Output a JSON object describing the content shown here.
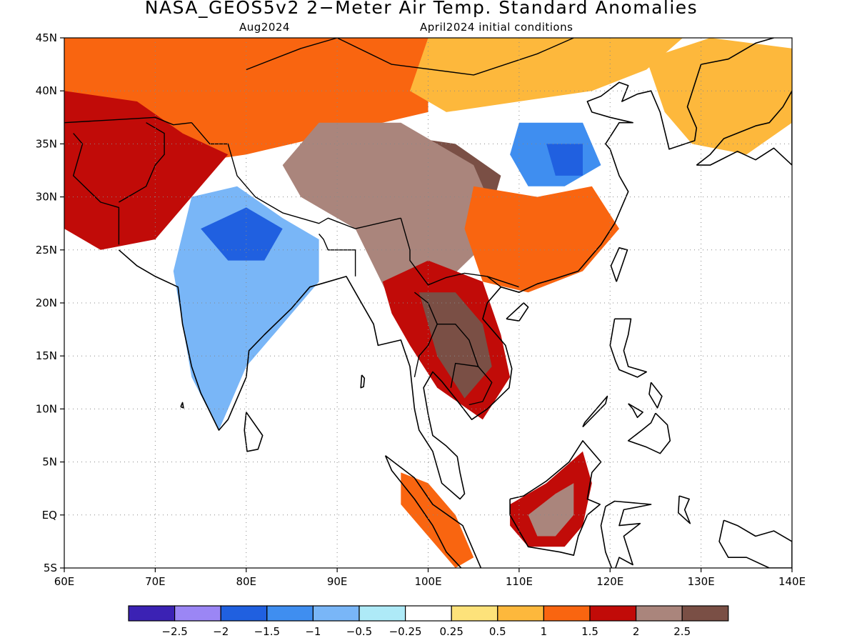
{
  "title": "NASA_GEOS5v2 2−Meter Air Temp. Standard Anomalies",
  "subtitle_left": "Aug2024",
  "subtitle_right": "April2024 initial conditions",
  "map": {
    "lat_labels": [
      "45N",
      "40N",
      "35N",
      "30N",
      "25N",
      "20N",
      "15N",
      "10N",
      "5N",
      "EQ",
      "5S"
    ],
    "lon_labels": [
      "60E",
      "70E",
      "80E",
      "90E",
      "100E",
      "110E",
      "120E",
      "130E",
      "140E"
    ],
    "extent": {
      "lon_min": 60,
      "lon_max": 140,
      "lat_min": -5,
      "lat_max": 45
    }
  },
  "colorbar": {
    "colors": [
      "#3b22b4",
      "#9b86f5",
      "#2060e0",
      "#3f8ef0",
      "#79b6f7",
      "#aeeaf7",
      "#ffffff",
      "#fde27a",
      "#fdb83c",
      "#f96510",
      "#c10b08",
      "#aa857c",
      "#7a4f45"
    ],
    "labels": [
      "−2.5",
      "−2",
      "−1.5",
      "−1",
      "−0.5",
      "−0.25",
      "0.25",
      "0.5",
      "1",
      "1.5",
      "2",
      "2.5"
    ]
  },
  "anomaly_regions": [
    {
      "name": "central-asia-warm",
      "color": "#f96510",
      "points": [
        [
          60,
          45
        ],
        [
          100,
          45
        ],
        [
          100,
          38
        ],
        [
          90,
          36
        ],
        [
          80,
          34
        ],
        [
          72,
          33
        ],
        [
          66,
          30
        ],
        [
          60,
          27
        ]
      ]
    },
    {
      "name": "west-hot",
      "color": "#c10b08",
      "points": [
        [
          60,
          40
        ],
        [
          68,
          39
        ],
        [
          73,
          36
        ],
        [
          78,
          34
        ],
        [
          74,
          30
        ],
        [
          70,
          26
        ],
        [
          64,
          25
        ],
        [
          60,
          27
        ]
      ]
    },
    {
      "name": "mongolia-band",
      "color": "#fdb83c",
      "points": [
        [
          100,
          45
        ],
        [
          128,
          45
        ],
        [
          124,
          42
        ],
        [
          118,
          40
        ],
        [
          110,
          39
        ],
        [
          102,
          38
        ],
        [
          98,
          40
        ]
      ]
    },
    {
      "name": "tibet-very-hot",
      "color": "#7a4f45",
      "points": [
        [
          86,
          35
        ],
        [
          95,
          36
        ],
        [
          103,
          35
        ],
        [
          108,
          32
        ],
        [
          106,
          26
        ],
        [
          100,
          23
        ],
        [
          94,
          27
        ],
        [
          88,
          29
        ]
      ]
    },
    {
      "name": "tibet-rim",
      "color": "#aa857c",
      "points": [
        [
          84,
          33
        ],
        [
          88,
          37
        ],
        [
          97,
          37
        ],
        [
          105,
          33
        ],
        [
          108,
          27
        ],
        [
          102,
          22
        ],
        [
          96,
          20
        ],
        [
          92,
          27
        ],
        [
          86,
          30
        ]
      ]
    },
    {
      "name": "south-china-warm",
      "color": "#f96510",
      "points": [
        [
          105,
          31
        ],
        [
          112,
          30
        ],
        [
          118,
          31
        ],
        [
          121,
          27
        ],
        [
          117,
          23
        ],
        [
          111,
          21
        ],
        [
          106,
          22
        ],
        [
          104,
          27
        ]
      ]
    },
    {
      "name": "north-china-cold",
      "color": "#3f8ef0",
      "points": [
        [
          110,
          37
        ],
        [
          117,
          37
        ],
        [
          119,
          33
        ],
        [
          115,
          31
        ],
        [
          111,
          31
        ],
        [
          109,
          34
        ]
      ]
    },
    {
      "name": "north-china-cold-core",
      "color": "#2060e0",
      "points": [
        [
          113,
          35
        ],
        [
          117,
          35
        ],
        [
          117,
          32
        ],
        [
          114,
          32
        ]
      ]
    },
    {
      "name": "india-cool",
      "color": "#79b6f7",
      "points": [
        [
          72,
          23
        ],
        [
          74,
          30
        ],
        [
          79,
          31
        ],
        [
          84,
          28
        ],
        [
          88,
          26
        ],
        [
          88,
          22
        ],
        [
          84,
          18
        ],
        [
          80,
          14
        ],
        [
          78,
          10
        ],
        [
          77,
          8
        ],
        [
          74,
          13
        ],
        [
          73,
          18
        ]
      ]
    },
    {
      "name": "india-cold-core",
      "color": "#2060e0",
      "points": [
        [
          75,
          27
        ],
        [
          80,
          29
        ],
        [
          84,
          27
        ],
        [
          82,
          24
        ],
        [
          78,
          24
        ]
      ]
    },
    {
      "name": "indochina-hot",
      "color": "#c10b08",
      "points": [
        [
          95,
          22
        ],
        [
          100,
          24
        ],
        [
          106,
          22
        ],
        [
          108,
          17
        ],
        [
          109,
          13
        ],
        [
          106,
          9
        ],
        [
          101,
          12
        ],
        [
          98,
          16
        ],
        [
          96,
          19
        ]
      ]
    },
    {
      "name": "indochina-very-hot",
      "color": "#7a4f45",
      "points": [
        [
          99,
          21
        ],
        [
          103,
          21
        ],
        [
          106,
          18
        ],
        [
          107,
          14
        ],
        [
          104,
          11
        ],
        [
          101,
          15
        ]
      ]
    },
    {
      "name": "borneo-hot",
      "color": "#c10b08",
      "points": [
        [
          109,
          1
        ],
        [
          113,
          3
        ],
        [
          117,
          6
        ],
        [
          118,
          3
        ],
        [
          117,
          -1
        ],
        [
          115,
          -3
        ],
        [
          111,
          -3
        ],
        [
          109,
          -1
        ]
      ]
    },
    {
      "name": "borneo-core",
      "color": "#aa857c",
      "points": [
        [
          111,
          0
        ],
        [
          114,
          2
        ],
        [
          116,
          3
        ],
        [
          116,
          0
        ],
        [
          114,
          -2
        ],
        [
          112,
          -2
        ]
      ]
    },
    {
      "name": "korea-japan-warm",
      "color": "#fdb83c",
      "points": [
        [
          124,
          43
        ],
        [
          131,
          45
        ],
        [
          140,
          44
        ],
        [
          140,
          37
        ],
        [
          135,
          34
        ],
        [
          129,
          35
        ],
        [
          126,
          38
        ]
      ]
    },
    {
      "name": "sumatra-warm",
      "color": "#f96510",
      "points": [
        [
          97,
          4
        ],
        [
          100,
          3
        ],
        [
          103,
          0
        ],
        [
          105,
          -4
        ],
        [
          103,
          -5
        ],
        [
          100,
          -2
        ],
        [
          97,
          1
        ]
      ]
    }
  ]
}
